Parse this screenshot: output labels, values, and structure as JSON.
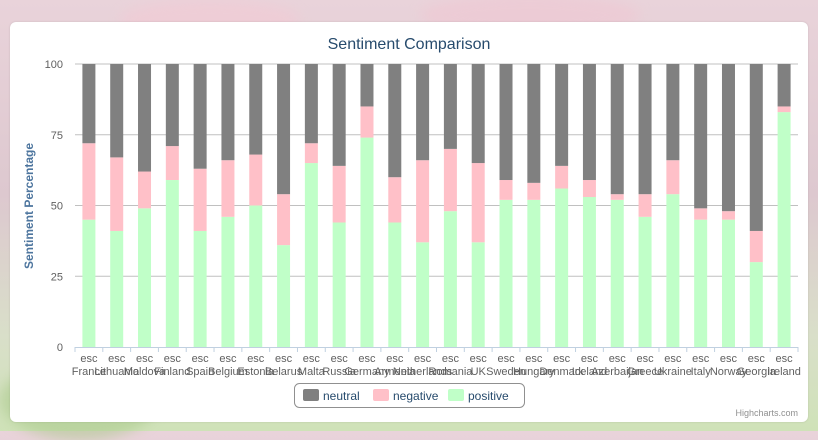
{
  "chart_data": {
    "type": "bar",
    "stacked": true,
    "title": "Sentiment Comparison",
    "ylabel": "Sentiment Percentage",
    "xlabel": "",
    "ylim": [
      0,
      100
    ],
    "yticks": [
      0,
      25,
      50,
      75,
      100
    ],
    "grid": true,
    "legend_position": "bottom",
    "credit": "Highcharts.com",
    "categories": [
      [
        "esc",
        "France"
      ],
      [
        "esc",
        "Lithuania"
      ],
      [
        "esc",
        "Moldova"
      ],
      [
        "esc",
        "Finland"
      ],
      [
        "esc",
        "Spain"
      ],
      [
        "esc",
        "Belgium"
      ],
      [
        "esc",
        "Estonia"
      ],
      [
        "esc",
        "Belarus"
      ],
      [
        "esc",
        "Malta"
      ],
      [
        "esc",
        "Russia"
      ],
      [
        "esc",
        "Germany"
      ],
      [
        "esc",
        "Armenia"
      ],
      [
        "esc",
        "Netherlands"
      ],
      [
        "esc",
        "Romania"
      ],
      [
        "esc",
        "UK"
      ],
      [
        "esc",
        "Sweden"
      ],
      [
        "esc",
        "Hungary"
      ],
      [
        "esc",
        "Denmark"
      ],
      [
        "esc",
        "Iceland"
      ],
      [
        "esc",
        "Azerbaijan"
      ],
      [
        "esc",
        "Greece"
      ],
      [
        "esc",
        "Ukraine"
      ],
      [
        "esc",
        "Italy"
      ],
      [
        "esc",
        "Norway"
      ],
      [
        "esc",
        "Georgia"
      ],
      [
        "esc",
        "Ireland"
      ]
    ],
    "series": [
      {
        "name": "neutral",
        "color": "#808080",
        "values": [
          28,
          33,
          38,
          29,
          37,
          34,
          32,
          46,
          28,
          36,
          15,
          40,
          34,
          30,
          35,
          41,
          42,
          36,
          41,
          46,
          46,
          34,
          51,
          52,
          59,
          15
        ]
      },
      {
        "name": "negative",
        "color": "#ffc0c8",
        "values": [
          27,
          26,
          13,
          12,
          22,
          20,
          18,
          18,
          7,
          20,
          11,
          16,
          29,
          22,
          28,
          7,
          6,
          8,
          6,
          2,
          8,
          12,
          4,
          3,
          11,
          2
        ]
      },
      {
        "name": "positive",
        "color": "#c0ffc8",
        "values": [
          45,
          41,
          49,
          59,
          41,
          46,
          50,
          36,
          65,
          44,
          74,
          44,
          37,
          48,
          37,
          52,
          52,
          56,
          53,
          52,
          46,
          54,
          45,
          45,
          30,
          83
        ]
      }
    ]
  }
}
